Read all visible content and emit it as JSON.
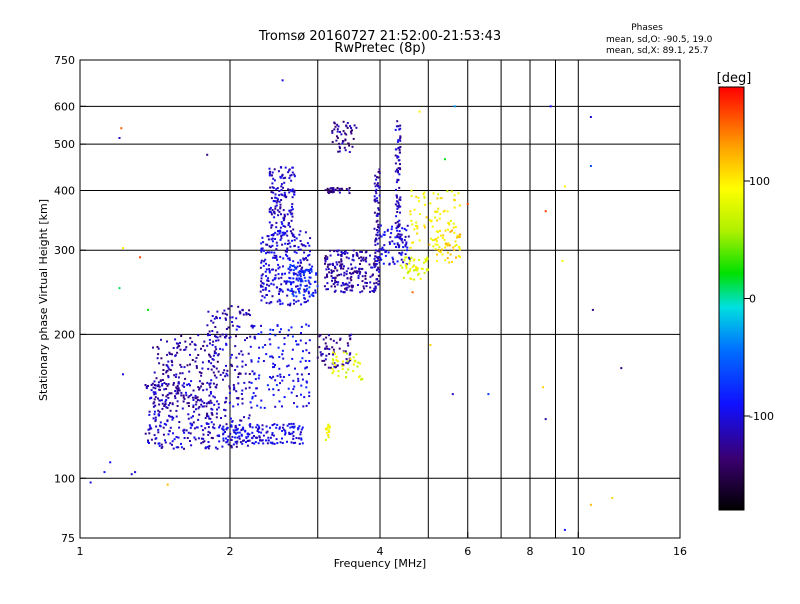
{
  "chart_data": {
    "type": "scatter",
    "title": "Tromsø 20160727 21:52:00-21:53:43",
    "subtitle": "RwPretec (8p)",
    "xlabel": "Frequency [MHz]",
    "ylabel": "Stationary phase Virtual Height [km]",
    "x_scale": "log",
    "y_scale": "log",
    "xlim": [
      1,
      16
    ],
    "ylim": [
      75,
      750
    ],
    "grid": true,
    "x_ticks": [
      1,
      2,
      4,
      6,
      8,
      10,
      16
    ],
    "x_tick_labels": [
      "1",
      "2",
      "4",
      "6",
      "8",
      "10",
      "16"
    ],
    "x_gridlines": [
      2,
      3,
      4,
      5,
      6,
      7,
      8,
      9,
      10
    ],
    "y_ticks": [
      75,
      100,
      200,
      300,
      400,
      500,
      600,
      750
    ],
    "y_tick_labels": [
      "75",
      "100",
      "200",
      "300",
      "400",
      "500",
      "600",
      "750"
    ],
    "y_gridlines": [
      100,
      200,
      300,
      400,
      500,
      600
    ],
    "stats": {
      "heading": "Phases",
      "line1": "mean, sd,O: -90.5, 19.0",
      "line2": "mean, sd,X:  89.1, 25.7"
    },
    "colorbar": {
      "label": "[deg]",
      "range": [
        -180,
        180
      ],
      "ticks": [
        100,
        0,
        -100
      ],
      "tick_labels": [
        "100",
        "0",
        "-100"
      ]
    },
    "clusters": [
      {
        "x": [
          1.35,
          1.85
        ],
        "y": [
          115,
          160
        ],
        "phase": -110,
        "count": 220
      },
      {
        "x": [
          1.4,
          1.9
        ],
        "y": [
          140,
          200
        ],
        "phase": -120,
        "count": 180
      },
      {
        "x": [
          1.8,
          2.2
        ],
        "y": [
          115,
          230
        ],
        "phase": -115,
        "count": 200
      },
      {
        "x": [
          1.9,
          2.8
        ],
        "y": [
          118,
          130
        ],
        "phase": -100,
        "count": 160
      },
      {
        "x": [
          2.2,
          2.9
        ],
        "y": [
          140,
          210
        ],
        "phase": -95,
        "count": 140
      },
      {
        "x": [
          2.3,
          2.9
        ],
        "y": [
          230,
          330
        ],
        "phase": -105,
        "count": 240
      },
      {
        "x": [
          2.4,
          2.7
        ],
        "y": [
          320,
          450
        ],
        "phase": -110,
        "count": 150
      },
      {
        "x": [
          2.6,
          3.0
        ],
        "y": [
          240,
          280
        ],
        "phase": -80,
        "count": 80
      },
      {
        "x": [
          3.1,
          4.0
        ],
        "y": [
          245,
          300
        ],
        "phase": -120,
        "count": 220
      },
      {
        "x": [
          3.2,
          3.6
        ],
        "y": [
          480,
          560
        ],
        "phase": -125,
        "count": 50
      },
      {
        "x": [
          3.1,
          3.5
        ],
        "y": [
          395,
          405
        ],
        "phase": -130,
        "count": 30
      },
      {
        "x": [
          3.0,
          3.5
        ],
        "y": [
          170,
          200
        ],
        "phase": -125,
        "count": 60
      },
      {
        "x": [
          3.9,
          4.0
        ],
        "y": [
          270,
          450
        ],
        "phase": -115,
        "count": 70
      },
      {
        "x": [
          4.3,
          4.4
        ],
        "y": [
          300,
          560
        ],
        "phase": -110,
        "count": 80
      },
      {
        "x": [
          4.0,
          4.6
        ],
        "y": [
          280,
          340
        ],
        "phase": -100,
        "count": 70
      },
      {
        "x": [
          3.2,
          3.7
        ],
        "y": [
          160,
          185
        ],
        "phase": 80,
        "count": 40
      },
      {
        "x": [
          3.1,
          3.2
        ],
        "y": [
          120,
          130
        ],
        "phase": 90,
        "count": 15
      },
      {
        "x": [
          4.4,
          5.0
        ],
        "y": [
          260,
          290
        ],
        "phase": 85,
        "count": 50
      },
      {
        "x": [
          4.6,
          5.8
        ],
        "y": [
          300,
          400
        ],
        "phase": 95,
        "count": 90
      },
      {
        "x": [
          5.2,
          5.8
        ],
        "y": [
          280,
          330
        ],
        "phase": 110,
        "count": 40
      }
    ],
    "points": [
      {
        "x": 1.05,
        "y": 98,
        "phase": -100
      },
      {
        "x": 1.12,
        "y": 103,
        "phase": -90
      },
      {
        "x": 1.15,
        "y": 108,
        "phase": -95
      },
      {
        "x": 1.27,
        "y": 102,
        "phase": -110
      },
      {
        "x": 1.29,
        "y": 103,
        "phase": -100
      },
      {
        "x": 1.2,
        "y": 515,
        "phase": -110
      },
      {
        "x": 1.21,
        "y": 540,
        "phase": 150
      },
      {
        "x": 1.22,
        "y": 303,
        "phase": 100
      },
      {
        "x": 1.2,
        "y": 250,
        "phase": 10
      },
      {
        "x": 1.32,
        "y": 290,
        "phase": 160
      },
      {
        "x": 1.37,
        "y": 225,
        "phase": 20
      },
      {
        "x": 1.8,
        "y": 475,
        "phase": -130
      },
      {
        "x": 1.22,
        "y": 165,
        "phase": -100
      },
      {
        "x": 1.5,
        "y": 97,
        "phase": 120
      },
      {
        "x": 2.55,
        "y": 680,
        "phase": -100
      },
      {
        "x": 5.65,
        "y": 600,
        "phase": -30
      },
      {
        "x": 8.8,
        "y": 600,
        "phase": -90
      },
      {
        "x": 10.6,
        "y": 570,
        "phase": -100
      },
      {
        "x": 10.6,
        "y": 450,
        "phase": -60
      },
      {
        "x": 10.7,
        "y": 225,
        "phase": -130
      },
      {
        "x": 8.6,
        "y": 362,
        "phase": 160
      },
      {
        "x": 9.4,
        "y": 408,
        "phase": 100
      },
      {
        "x": 9.3,
        "y": 285,
        "phase": 90
      },
      {
        "x": 12.2,
        "y": 170,
        "phase": -130
      },
      {
        "x": 8.5,
        "y": 155,
        "phase": 110
      },
      {
        "x": 8.6,
        "y": 133,
        "phase": -120
      },
      {
        "x": 6.6,
        "y": 150,
        "phase": -70
      },
      {
        "x": 9.4,
        "y": 78,
        "phase": -90
      },
      {
        "x": 10.6,
        "y": 88,
        "phase": 120
      },
      {
        "x": 11.7,
        "y": 91,
        "phase": 110
      },
      {
        "x": 5.05,
        "y": 190,
        "phase": 110
      },
      {
        "x": 5.6,
        "y": 150,
        "phase": -110
      },
      {
        "x": 4.65,
        "y": 245,
        "phase": 150
      },
      {
        "x": 6.0,
        "y": 375,
        "phase": 160
      },
      {
        "x": 5.4,
        "y": 465,
        "phase": 20
      },
      {
        "x": 4.8,
        "y": 585,
        "phase": 100
      }
    ]
  }
}
